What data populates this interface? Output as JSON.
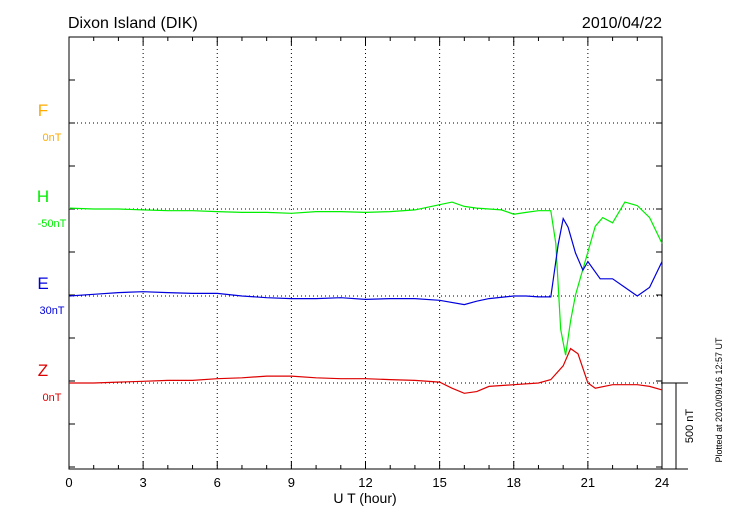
{
  "chart_data": {
    "type": "line",
    "title": "Dixon Island (DIK)",
    "date": "2010/04/22",
    "xlabel": "U T (hour)",
    "xlim": [
      0,
      24
    ],
    "xticks": [
      "0",
      "3",
      "6",
      "9",
      "12",
      "15",
      "18",
      "21",
      "24"
    ],
    "grid": true,
    "scale_bar": "500 nT",
    "plotted_note": "Plotted at 2010/09/16 12:57 UT",
    "series": [
      {
        "name": "F",
        "baseline_label": "0nT",
        "color": "#ffaa00",
        "x": [],
        "y": []
      },
      {
        "name": "H",
        "baseline_label": "-50nT",
        "color": "#00ee00",
        "x": [
          0,
          1,
          2,
          3,
          4,
          5,
          6,
          7,
          8,
          9,
          10,
          11,
          12,
          13,
          14,
          15,
          15.5,
          16,
          16.5,
          17,
          17.5,
          18,
          18.5,
          19,
          19.5,
          19.7,
          19.9,
          20.1,
          20.3,
          20.5,
          20.8,
          21,
          21.3,
          21.6,
          22,
          22.5,
          23,
          23.5,
          24
        ],
        "y": [
          5,
          0,
          0,
          -5,
          -10,
          -10,
          -15,
          -20,
          -20,
          -25,
          -15,
          -15,
          -20,
          -15,
          -5,
          25,
          40,
          15,
          5,
          0,
          -5,
          -30,
          -20,
          -10,
          -10,
          -200,
          -700,
          -850,
          -650,
          -500,
          -350,
          -250,
          -100,
          -50,
          -80,
          40,
          20,
          -50,
          -200
        ]
      },
      {
        "name": "E",
        "baseline_label": "30nT",
        "color": "#0000dd",
        "x": [
          0,
          1,
          2,
          3,
          4,
          5,
          6,
          7,
          8,
          9,
          10,
          11,
          12,
          13,
          14,
          15,
          16,
          16.5,
          17,
          18,
          18.5,
          19,
          19.5,
          19.8,
          20,
          20.2,
          20.5,
          20.8,
          21,
          21.5,
          22,
          22.5,
          23,
          23.5,
          24
        ],
        "y": [
          0,
          10,
          20,
          25,
          20,
          15,
          15,
          0,
          -10,
          -15,
          -15,
          -10,
          -20,
          -15,
          -15,
          -25,
          -50,
          -30,
          -15,
          0,
          0,
          -5,
          -5,
          300,
          450,
          400,
          250,
          150,
          200,
          100,
          100,
          50,
          0,
          50,
          200
        ]
      },
      {
        "name": "Z",
        "baseline_label": "0nT",
        "color": "#dd0000",
        "x": [
          0,
          1,
          2,
          3,
          4,
          5,
          6,
          7,
          8,
          9,
          10,
          11,
          12,
          13,
          14,
          15,
          15.5,
          16,
          16.5,
          17,
          18,
          19,
          19.5,
          20,
          20.3,
          20.6,
          21,
          21.3,
          22,
          23,
          23.5,
          24
        ],
        "y": [
          0,
          0,
          5,
          10,
          15,
          15,
          25,
          30,
          40,
          40,
          30,
          25,
          25,
          20,
          15,
          5,
          -30,
          -60,
          -50,
          -20,
          -10,
          0,
          20,
          100,
          200,
          170,
          0,
          -30,
          -10,
          -10,
          -20,
          -40
        ]
      }
    ]
  }
}
